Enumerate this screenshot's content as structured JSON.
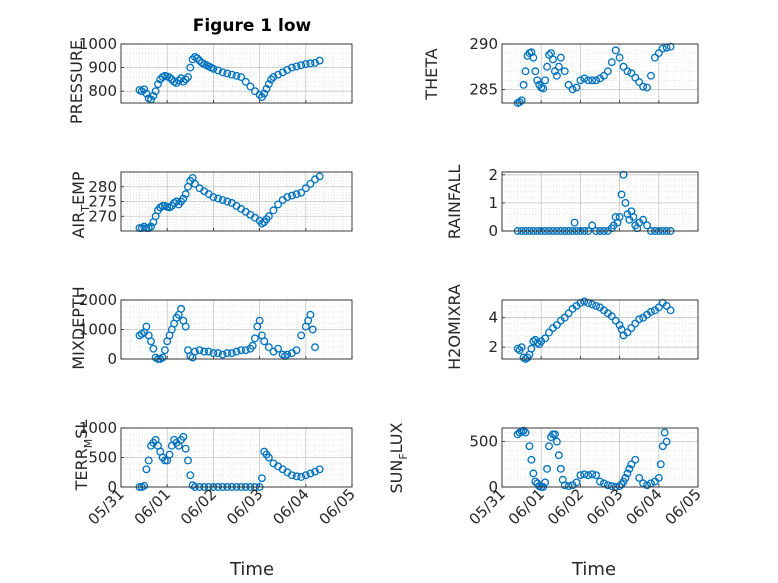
{
  "figure": {
    "title": "Figure 1 low",
    "xlabel": "Time",
    "x_ticks": [
      "05/31",
      "06/01",
      "06/02",
      "06/03",
      "06/04",
      "06/05"
    ],
    "marker_color": "#0072BD"
  },
  "chart_data": [
    {
      "type": "scatter",
      "ylabel": "PRESSURE",
      "ylim": [
        750,
        1000
      ],
      "y_ticks": [
        800,
        900,
        1000
      ],
      "xlim": [
        0,
        5
      ],
      "grid": true,
      "x": [
        0.4,
        0.45,
        0.5,
        0.55,
        0.6,
        0.65,
        0.7,
        0.75,
        0.8,
        0.85,
        0.9,
        0.95,
        1.0,
        1.05,
        1.1,
        1.15,
        1.2,
        1.25,
        1.3,
        1.35,
        1.4,
        1.45,
        1.5,
        1.55,
        1.6,
        1.65,
        1.7,
        1.75,
        1.8,
        1.85,
        1.9,
        1.95,
        2.0,
        2.1,
        2.2,
        2.3,
        2.4,
        2.5,
        2.6,
        2.7,
        2.8,
        2.9,
        3.0,
        3.05,
        3.1,
        3.15,
        3.2,
        3.25,
        3.3,
        3.4,
        3.5,
        3.6,
        3.7,
        3.8,
        3.9,
        4.0,
        4.1,
        4.2,
        4.3
      ],
      "y": [
        805,
        800,
        808,
        790,
        770,
        765,
        780,
        800,
        830,
        850,
        860,
        865,
        862,
        858,
        850,
        840,
        835,
        845,
        855,
        840,
        850,
        860,
        900,
        935,
        945,
        940,
        930,
        920,
        915,
        910,
        905,
        900,
        895,
        888,
        880,
        875,
        870,
        865,
        860,
        840,
        820,
        800,
        785,
        775,
        790,
        810,
        830,
        850,
        860,
        870,
        880,
        890,
        900,
        905,
        910,
        915,
        918,
        920,
        930
      ]
    },
    {
      "type": "scatter",
      "ylabel": "THETA",
      "ylim": [
        283.5,
        290
      ],
      "y_ticks": [
        285,
        290
      ],
      "xlim": [
        0,
        5
      ],
      "grid": true,
      "x": [
        0.4,
        0.45,
        0.5,
        0.55,
        0.6,
        0.65,
        0.7,
        0.75,
        0.8,
        0.85,
        0.9,
        0.95,
        1.0,
        1.05,
        1.1,
        1.15,
        1.2,
        1.25,
        1.3,
        1.35,
        1.4,
        1.45,
        1.5,
        1.6,
        1.7,
        1.8,
        1.9,
        2.0,
        2.1,
        2.2,
        2.3,
        2.4,
        2.5,
        2.6,
        2.7,
        2.8,
        2.9,
        3.0,
        3.1,
        3.2,
        3.3,
        3.4,
        3.5,
        3.6,
        3.7,
        3.8,
        3.9,
        4.0,
        4.1,
        4.2,
        4.3
      ],
      "y": [
        283.5,
        283.6,
        283.8,
        285.5,
        287,
        288.7,
        289,
        289.1,
        288.5,
        287,
        286,
        285.5,
        285.2,
        285.1,
        286,
        287.5,
        288.8,
        289,
        288.3,
        287,
        286.5,
        287.5,
        288.5,
        287,
        285.5,
        285,
        285.2,
        286,
        286.2,
        286,
        286,
        286,
        286.2,
        286.5,
        287,
        288,
        289.3,
        288.5,
        287.5,
        287,
        286.8,
        286.3,
        285.8,
        285.3,
        285.2,
        286.5,
        288.5,
        289,
        289.5,
        289.6,
        289.7
      ]
    },
    {
      "type": "scatter",
      "ylabel": "AIR_TEMP",
      "ylim": [
        265,
        285
      ],
      "y_ticks": [
        270,
        275,
        280
      ],
      "xlim": [
        0,
        5
      ],
      "grid": true,
      "x": [
        0.4,
        0.45,
        0.5,
        0.55,
        0.6,
        0.65,
        0.7,
        0.75,
        0.8,
        0.85,
        0.9,
        0.95,
        1.0,
        1.05,
        1.1,
        1.15,
        1.2,
        1.25,
        1.3,
        1.35,
        1.4,
        1.45,
        1.5,
        1.55,
        1.6,
        1.7,
        1.8,
        1.9,
        2.0,
        2.1,
        2.2,
        2.3,
        2.4,
        2.5,
        2.6,
        2.7,
        2.8,
        2.9,
        3.0,
        3.05,
        3.1,
        3.15,
        3.2,
        3.3,
        3.4,
        3.5,
        3.6,
        3.7,
        3.8,
        3.9,
        4.0,
        4.1,
        4.2,
        4.3
      ],
      "y": [
        266,
        266,
        266.5,
        266,
        266,
        266.5,
        268,
        270,
        272,
        273,
        273.5,
        273.5,
        273.2,
        273,
        273.5,
        274.5,
        275,
        274,
        275,
        276,
        277.5,
        280,
        282,
        283,
        281,
        279.5,
        278.5,
        277.5,
        276.5,
        276,
        275.5,
        275,
        274.5,
        273.5,
        272.5,
        271.5,
        270.5,
        269.5,
        268.5,
        267.5,
        268,
        269,
        270,
        272,
        274,
        275.5,
        276.5,
        277,
        277.5,
        278,
        279.5,
        281,
        282.5,
        283.5
      ]
    },
    {
      "type": "scatter",
      "ylabel": "RAINFALL",
      "ylim": [
        0,
        2.1
      ],
      "y_ticks": [
        0,
        1,
        2
      ],
      "xlim": [
        0,
        5
      ],
      "grid": true,
      "x": [
        0.4,
        0.5,
        0.6,
        0.7,
        0.8,
        0.9,
        1.0,
        1.1,
        1.2,
        1.3,
        1.4,
        1.5,
        1.6,
        1.7,
        1.8,
        1.85,
        1.9,
        2.0,
        2.1,
        2.2,
        2.3,
        2.4,
        2.5,
        2.6,
        2.7,
        2.8,
        2.85,
        2.9,
        2.95,
        3.0,
        3.05,
        3.1,
        3.15,
        3.2,
        3.25,
        3.3,
        3.35,
        3.4,
        3.45,
        3.5,
        3.6,
        3.7,
        3.8,
        3.9,
        4.0,
        4.1,
        4.2,
        4.3
      ],
      "y": [
        0,
        0,
        0,
        0,
        0,
        0,
        0,
        0,
        0,
        0,
        0,
        0,
        0,
        0,
        0,
        0.3,
        0,
        0,
        0,
        0,
        0.2,
        0,
        0,
        0,
        0,
        0.1,
        0.2,
        0.5,
        0.3,
        0.5,
        1.3,
        2.0,
        1.0,
        0.6,
        0.4,
        0.7,
        0.5,
        0.2,
        0.1,
        0.3,
        0.4,
        0.2,
        0,
        0,
        0,
        0,
        0,
        0
      ]
    },
    {
      "type": "scatter",
      "ylabel": "MIXDEPTH",
      "ylim": [
        0,
        2000
      ],
      "y_ticks": [
        0,
        1000,
        2000
      ],
      "xlim": [
        0,
        5
      ],
      "grid": true,
      "x": [
        0.4,
        0.45,
        0.5,
        0.55,
        0.6,
        0.65,
        0.7,
        0.75,
        0.8,
        0.85,
        0.9,
        0.95,
        1.0,
        1.05,
        1.1,
        1.15,
        1.2,
        1.25,
        1.3,
        1.35,
        1.4,
        1.45,
        1.5,
        1.55,
        1.6,
        1.7,
        1.8,
        1.9,
        2.0,
        2.1,
        2.2,
        2.3,
        2.4,
        2.5,
        2.6,
        2.7,
        2.8,
        2.85,
        2.9,
        2.95,
        3.0,
        3.05,
        3.1,
        3.2,
        3.3,
        3.4,
        3.5,
        3.55,
        3.6,
        3.7,
        3.8,
        3.9,
        4.0,
        4.05,
        4.1,
        4.15,
        4.2
      ],
      "y": [
        800,
        850,
        900,
        1100,
        800,
        600,
        350,
        50,
        0,
        0,
        50,
        300,
        600,
        800,
        1000,
        1200,
        1400,
        1500,
        1700,
        1300,
        1100,
        300,
        100,
        50,
        250,
        300,
        250,
        250,
        200,
        200,
        150,
        200,
        200,
        250,
        300,
        300,
        350,
        450,
        700,
        1100,
        1300,
        800,
        600,
        400,
        250,
        350,
        150,
        100,
        150,
        200,
        300,
        800,
        1100,
        1300,
        1500,
        1000,
        400
      ]
    },
    {
      "type": "scatter",
      "ylabel": "H2OMIXRA",
      "ylim": [
        1.2,
        5.2
      ],
      "y_ticks": [
        2,
        4
      ],
      "xlim": [
        0,
        5
      ],
      "grid": true,
      "x": [
        0.4,
        0.45,
        0.5,
        0.55,
        0.6,
        0.65,
        0.7,
        0.75,
        0.8,
        0.85,
        0.9,
        0.95,
        1.0,
        1.1,
        1.2,
        1.3,
        1.4,
        1.5,
        1.6,
        1.7,
        1.8,
        1.9,
        2.0,
        2.1,
        2.2,
        2.3,
        2.4,
        2.5,
        2.6,
        2.7,
        2.8,
        2.9,
        3.0,
        3.05,
        3.1,
        3.2,
        3.3,
        3.4,
        3.5,
        3.6,
        3.7,
        3.8,
        3.9,
        4.0,
        4.1,
        4.2,
        4.3
      ],
      "y": [
        1.9,
        1.8,
        2.0,
        1.3,
        1.2,
        1.3,
        1.5,
        1.9,
        2.4,
        2.5,
        2.3,
        2.2,
        2.4,
        2.6,
        3.0,
        3.3,
        3.5,
        3.8,
        4.0,
        4.3,
        4.6,
        4.8,
        5.0,
        5.1,
        5.0,
        4.9,
        4.8,
        4.7,
        4.5,
        4.3,
        4.1,
        3.8,
        3.5,
        3.2,
        2.8,
        3.0,
        3.3,
        3.6,
        3.9,
        4.0,
        4.2,
        4.4,
        4.5,
        4.7,
        5.0,
        4.8,
        4.5
      ]
    },
    {
      "type": "scatter",
      "ylabel": "TERR_MSL",
      "ylim": [
        0,
        1000
      ],
      "y_ticks": [
        0,
        500,
        1000
      ],
      "xlim": [
        0,
        5
      ],
      "grid": true,
      "x": [
        0.4,
        0.45,
        0.5,
        0.55,
        0.6,
        0.65,
        0.7,
        0.75,
        0.8,
        0.85,
        0.9,
        0.95,
        1.0,
        1.05,
        1.1,
        1.15,
        1.2,
        1.25,
        1.3,
        1.35,
        1.4,
        1.45,
        1.5,
        1.55,
        1.6,
        1.7,
        1.8,
        1.9,
        2.0,
        2.1,
        2.2,
        2.3,
        2.4,
        2.5,
        2.6,
        2.7,
        2.8,
        2.9,
        3.0,
        3.05,
        3.1,
        3.15,
        3.2,
        3.3,
        3.4,
        3.5,
        3.6,
        3.7,
        3.8,
        3.9,
        4.0,
        4.1,
        4.2,
        4.3
      ],
      "y": [
        0,
        0,
        20,
        300,
        450,
        700,
        750,
        800,
        700,
        600,
        500,
        450,
        450,
        550,
        700,
        800,
        750,
        700,
        800,
        850,
        650,
        450,
        200,
        30,
        0,
        0,
        0,
        0,
        0,
        0,
        0,
        0,
        0,
        0,
        0,
        0,
        0,
        0,
        0,
        150,
        600,
        550,
        500,
        400,
        350,
        300,
        250,
        200,
        180,
        170,
        200,
        230,
        260,
        300
      ]
    },
    {
      "type": "scatter",
      "ylabel": "SUN_FLUX",
      "ylim": [
        0,
        650
      ],
      "y_ticks": [
        0,
        500
      ],
      "xlim": [
        0,
        5
      ],
      "grid": true,
      "x": [
        0.4,
        0.45,
        0.5,
        0.55,
        0.6,
        0.7,
        0.75,
        0.8,
        0.85,
        0.9,
        0.95,
        1.0,
        1.05,
        1.1,
        1.15,
        1.2,
        1.25,
        1.3,
        1.35,
        1.4,
        1.45,
        1.5,
        1.55,
        1.6,
        1.7,
        1.8,
        1.9,
        2.0,
        2.1,
        2.2,
        2.3,
        2.4,
        2.5,
        2.6,
        2.7,
        2.8,
        2.9,
        3.0,
        3.05,
        3.1,
        3.15,
        3.2,
        3.25,
        3.3,
        3.4,
        3.5,
        3.6,
        3.7,
        3.8,
        3.9,
        4.0,
        4.05,
        4.1,
        4.15,
        4.2
      ],
      "y": [
        580,
        600,
        610,
        620,
        600,
        450,
        300,
        150,
        60,
        40,
        10,
        0,
        0,
        50,
        200,
        450,
        550,
        580,
        580,
        500,
        350,
        200,
        80,
        20,
        10,
        20,
        50,
        130,
        140,
        130,
        140,
        130,
        60,
        40,
        20,
        10,
        0,
        10,
        30,
        60,
        100,
        150,
        200,
        250,
        300,
        100,
        40,
        20,
        40,
        60,
        100,
        250,
        450,
        600,
        500
      ]
    }
  ]
}
